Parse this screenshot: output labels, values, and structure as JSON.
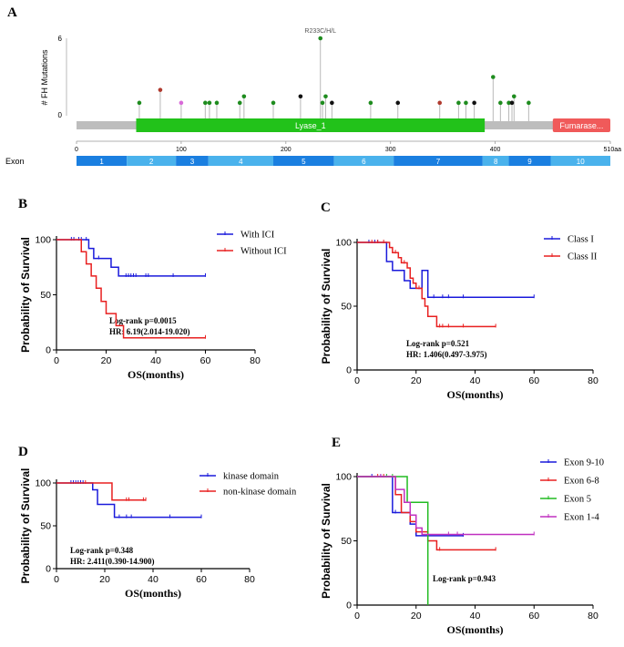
{
  "panel_a": {
    "letter": "A",
    "y_axis_label": "# FH Mutations",
    "y_ticks": [
      "6",
      "0"
    ],
    "hotspot_label": "R233C/H/L",
    "axis_ticks": [
      "0",
      "100",
      "200",
      "300",
      "400",
      "510aa"
    ],
    "domains": [
      {
        "name": "Lyase_1",
        "start": 57,
        "end": 390,
        "color": "#22c21a"
      },
      {
        "name": "Fumarase...",
        "start": 455,
        "end": 510,
        "color": "#f05a5a"
      }
    ],
    "exon_row_label": "Exon",
    "exons": [
      {
        "label": "1",
        "start": 0,
        "end": 48
      },
      {
        "label": "2",
        "start": 48,
        "end": 95
      },
      {
        "label": "3",
        "start": 95,
        "end": 126
      },
      {
        "label": "4",
        "start": 126,
        "end": 188
      },
      {
        "label": "5",
        "start": 188,
        "end": 246
      },
      {
        "label": "6",
        "start": 246,
        "end": 303
      },
      {
        "label": "7",
        "start": 303,
        "end": 388
      },
      {
        "label": "8",
        "start": 388,
        "end": 413
      },
      {
        "label": "9",
        "start": 413,
        "end": 453
      },
      {
        "label": "10",
        "start": 453,
        "end": 510
      }
    ],
    "mutations": [
      {
        "pos": 60,
        "count": 1,
        "color": "#1e8c1e"
      },
      {
        "pos": 80,
        "count": 2,
        "color": "#b03a2e"
      },
      {
        "pos": 100,
        "count": 1,
        "color": "#d86ad8"
      },
      {
        "pos": 123,
        "count": 1,
        "color": "#1e8c1e"
      },
      {
        "pos": 127,
        "count": 1,
        "color": "#1e8c1e"
      },
      {
        "pos": 134,
        "count": 1,
        "color": "#1e8c1e"
      },
      {
        "pos": 156,
        "count": 1,
        "color": "#1e8c1e"
      },
      {
        "pos": 160,
        "count": 1.5,
        "color": "#1e8c1e"
      },
      {
        "pos": 188,
        "count": 1,
        "color": "#1e8c1e"
      },
      {
        "pos": 214,
        "count": 1.5,
        "color": "#111111"
      },
      {
        "pos": 233,
        "count": 6,
        "color": "#1e8c1e"
      },
      {
        "pos": 235,
        "count": 1,
        "color": "#1e8c1e"
      },
      {
        "pos": 238,
        "count": 1.5,
        "color": "#1e8c1e"
      },
      {
        "pos": 244,
        "count": 1,
        "color": "#111111"
      },
      {
        "pos": 281,
        "count": 1,
        "color": "#1e8c1e"
      },
      {
        "pos": 307,
        "count": 1,
        "color": "#111111"
      },
      {
        "pos": 347,
        "count": 1,
        "color": "#b03a2e"
      },
      {
        "pos": 365,
        "count": 1,
        "color": "#1e8c1e"
      },
      {
        "pos": 372,
        "count": 1,
        "color": "#1e8c1e"
      },
      {
        "pos": 380,
        "count": 1,
        "color": "#111111"
      },
      {
        "pos": 398,
        "count": 3,
        "color": "#1e8c1e"
      },
      {
        "pos": 405,
        "count": 1,
        "color": "#1e8c1e"
      },
      {
        "pos": 413,
        "count": 1,
        "color": "#1e8c1e"
      },
      {
        "pos": 416,
        "count": 1,
        "color": "#111111"
      },
      {
        "pos": 418,
        "count": 1.5,
        "color": "#1e8c1e"
      },
      {
        "pos": 432,
        "count": 1,
        "color": "#1e8c1e"
      }
    ]
  },
  "chart_data": [
    {
      "type": "line",
      "panel": "B",
      "title": "",
      "xlabel": "OS(months)",
      "ylabel": "Probability of Survival",
      "xlim": [
        0,
        80
      ],
      "ylim": [
        0,
        100
      ],
      "x_ticks": [
        0,
        20,
        40,
        60,
        80
      ],
      "y_ticks": [
        0,
        50,
        100
      ],
      "series": [
        {
          "name": "With ICI",
          "color": "#1a1adb",
          "steps": [
            [
              0,
              100
            ],
            [
              11,
              100
            ],
            [
              13,
              92
            ],
            [
              15,
              83
            ],
            [
              20,
              83
            ],
            [
              22,
              75
            ],
            [
              25,
              67
            ],
            [
              60,
              67
            ]
          ],
          "censors": [
            [
              6,
              100
            ],
            [
              7,
              100
            ],
            [
              9,
              100
            ],
            [
              10,
              100
            ],
            [
              12,
              100
            ],
            [
              17,
              83
            ],
            [
              28,
              67
            ],
            [
              29,
              67
            ],
            [
              30,
              67
            ],
            [
              31,
              67
            ],
            [
              32,
              67
            ],
            [
              36,
              67
            ],
            [
              37,
              67
            ],
            [
              47,
              67
            ],
            [
              60,
              67
            ]
          ]
        },
        {
          "name": "Without ICI",
          "color": "#e82020",
          "steps": [
            [
              0,
              100
            ],
            [
              9,
              100
            ],
            [
              10,
              89
            ],
            [
              12,
              78
            ],
            [
              14,
              67
            ],
            [
              16,
              56
            ],
            [
              18,
              44
            ],
            [
              20,
              33
            ],
            [
              24,
              22
            ],
            [
              27,
              11
            ],
            [
              60,
              11
            ]
          ],
          "censors": [
            [
              60,
              11
            ]
          ]
        }
      ],
      "annotations": [
        "Log-rank p=0.0015",
        "HR:  6.19(2.014-19.020)"
      ]
    },
    {
      "type": "line",
      "panel": "C",
      "title": "",
      "xlabel": "OS(months)",
      "ylabel": "Probability of Survival",
      "xlim": [
        0,
        80
      ],
      "ylim": [
        0,
        100
      ],
      "x_ticks": [
        0,
        20,
        40,
        60,
        80
      ],
      "y_ticks": [
        0,
        50,
        100
      ],
      "series": [
        {
          "name": "Class I",
          "color": "#1a1adb",
          "steps": [
            [
              0,
              100
            ],
            [
              8,
              100
            ],
            [
              10,
              85
            ],
            [
              12,
              78
            ],
            [
              16,
              70
            ],
            [
              18,
              64
            ],
            [
              22,
              78
            ],
            [
              24,
              57
            ],
            [
              60,
              57
            ]
          ],
          "censors": [
            [
              4,
              100
            ],
            [
              6,
              100
            ],
            [
              7,
              100
            ],
            [
              26,
              57
            ],
            [
              29,
              57
            ],
            [
              31,
              57
            ],
            [
              36,
              57
            ],
            [
              60,
              57
            ]
          ]
        },
        {
          "name": "Class II",
          "color": "#e82020",
          "steps": [
            [
              0,
              100
            ],
            [
              10,
              100
            ],
            [
              11,
              96
            ],
            [
              12,
              92
            ],
            [
              14,
              88
            ],
            [
              15,
              84
            ],
            [
              17,
              80
            ],
            [
              18,
              72
            ],
            [
              19,
              68
            ],
            [
              20,
              64
            ],
            [
              22,
              56
            ],
            [
              23,
              50
            ],
            [
              24,
              42
            ],
            [
              27,
              34
            ],
            [
              47,
              34
            ]
          ],
          "censors": [
            [
              5,
              100
            ],
            [
              7,
              100
            ],
            [
              9,
              100
            ],
            [
              13,
              92
            ],
            [
              16,
              84
            ],
            [
              21,
              64
            ],
            [
              28,
              34
            ],
            [
              29,
              34
            ],
            [
              31,
              34
            ],
            [
              36,
              34
            ],
            [
              47,
              34
            ]
          ]
        }
      ],
      "annotations": [
        "Log-rank p=0.521",
        "HR: 1.406(0.497-3.975)"
      ]
    },
    {
      "type": "line",
      "panel": "D",
      "title": "",
      "xlabel": "OS(months)",
      "ylabel": "Probability of Survival",
      "xlim": [
        0,
        80
      ],
      "ylim": [
        0,
        100
      ],
      "x_ticks": [
        0,
        20,
        40,
        60,
        80
      ],
      "y_ticks": [
        0,
        50,
        100
      ],
      "series": [
        {
          "name": "kinase domain",
          "color": "#1a1adb",
          "steps": [
            [
              0,
              100
            ],
            [
              13,
              100
            ],
            [
              15,
              92
            ],
            [
              17,
              75
            ],
            [
              24,
              60
            ],
            [
              60,
              60
            ]
          ],
          "censors": [
            [
              6,
              100
            ],
            [
              7,
              100
            ],
            [
              8,
              100
            ],
            [
              9,
              100
            ],
            [
              10,
              100
            ],
            [
              11,
              100
            ],
            [
              26,
              60
            ],
            [
              29,
              60
            ],
            [
              31,
              60
            ],
            [
              47,
              60
            ],
            [
              60,
              60
            ]
          ]
        },
        {
          "name": "non-kinase domain",
          "color": "#e82020",
          "steps": [
            [
              0,
              100
            ],
            [
              22,
              100
            ],
            [
              23,
              80
            ],
            [
              37,
              80
            ]
          ],
          "censors": [
            [
              12,
              100
            ],
            [
              29,
              80
            ],
            [
              30,
              80
            ],
            [
              36,
              80
            ],
            [
              37,
              80
            ]
          ]
        }
      ],
      "annotations": [
        "Log-rank p=0.348",
        "HR: 2.411(0.390-14.900)"
      ]
    },
    {
      "type": "line",
      "panel": "E",
      "title": "",
      "xlabel": "OS(months)",
      "ylabel": "Probability of Survival",
      "xlim": [
        0,
        80
      ],
      "ylim": [
        0,
        100
      ],
      "x_ticks": [
        0,
        20,
        40,
        60,
        80
      ],
      "y_ticks": [
        0,
        50,
        100
      ],
      "series": [
        {
          "name": "Exon 9-10",
          "color": "#1a1adb",
          "steps": [
            [
              0,
              100
            ],
            [
              10,
              100
            ],
            [
              12,
              72
            ],
            [
              16,
              72
            ],
            [
              18,
              63
            ],
            [
              20,
              54
            ],
            [
              36,
              54
            ]
          ],
          "censors": [
            [
              5,
              100
            ],
            [
              8,
              100
            ],
            [
              13,
              72
            ],
            [
              36,
              54
            ]
          ]
        },
        {
          "name": "Exon 6-8",
          "color": "#e82020",
          "steps": [
            [
              0,
              100
            ],
            [
              11,
              100
            ],
            [
              13,
              86
            ],
            [
              15,
              72
            ],
            [
              18,
              65
            ],
            [
              20,
              57
            ],
            [
              24,
              50
            ],
            [
              27,
              43
            ],
            [
              47,
              43
            ]
          ],
          "censors": [
            [
              7,
              100
            ],
            [
              9,
              100
            ],
            [
              22,
              57
            ],
            [
              28,
              43
            ],
            [
              47,
              43
            ]
          ]
        },
        {
          "name": "Exon 5",
          "color": "#22bb22",
          "steps": [
            [
              0,
              100
            ],
            [
              16,
              100
            ],
            [
              17,
              80
            ],
            [
              24,
              80
            ],
            [
              24,
              0
            ]
          ],
          "censors": [
            [
              10,
              100
            ],
            [
              12,
              100
            ]
          ]
        },
        {
          "name": "Exon 1-4",
          "color": "#c030c0",
          "steps": [
            [
              0,
              100
            ],
            [
              12,
              100
            ],
            [
              13,
              90
            ],
            [
              16,
              80
            ],
            [
              18,
              70
            ],
            [
              20,
              60
            ],
            [
              22,
              55
            ],
            [
              60,
              55
            ]
          ],
          "censors": [
            [
              8,
              100
            ],
            [
              31,
              55
            ],
            [
              34,
              55
            ],
            [
              60,
              55
            ]
          ]
        }
      ],
      "annotations": [
        "Log-rank p=0.943"
      ]
    }
  ]
}
